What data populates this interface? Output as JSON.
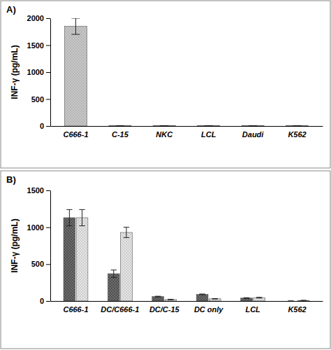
{
  "chart_data": [
    {
      "type": "bar",
      "title": "A)",
      "y_label": "INF-γ (pg/mL)",
      "categories": [
        "C666-1",
        "C-15",
        "NKC",
        "LCL",
        "Daudi",
        "K562"
      ],
      "values": [
        1850,
        5,
        5,
        5,
        5,
        5
      ],
      "errors": [
        150,
        0,
        0,
        0,
        0,
        0
      ],
      "color": "#c8c8c8",
      "ylim": [
        0,
        2000
      ],
      "yticks": [
        0,
        500,
        1000,
        1500,
        2000
      ]
    },
    {
      "type": "bar",
      "title": "B)",
      "y_label": "INF-γ (pg/mL)",
      "categories": [
        "C666-1",
        "DC/C666-1",
        "DC/C-15",
        "DC only",
        "LCL",
        "K562"
      ],
      "series": [
        {
          "color": "#6e6e6e",
          "values": [
            1130,
            370,
            60,
            90,
            40,
            0
          ],
          "errors": [
            110,
            50,
            5,
            5,
            5,
            0
          ]
        },
        {
          "color": "#e6e6e6",
          "values": [
            1130,
            930,
            20,
            30,
            45,
            5
          ],
          "errors": [
            110,
            70,
            3,
            3,
            5,
            5
          ]
        }
      ],
      "ylim": [
        0,
        1500
      ],
      "yticks": [
        0,
        500,
        1000,
        1500
      ]
    }
  ]
}
